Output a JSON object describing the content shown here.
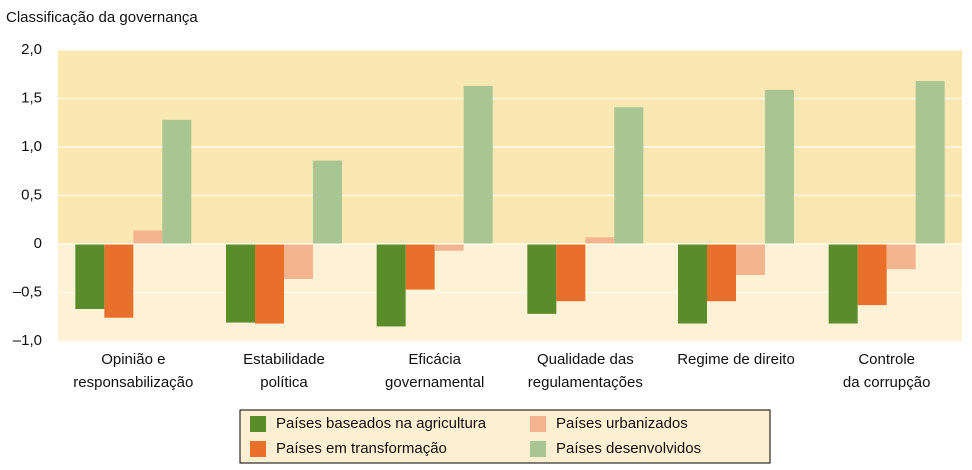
{
  "chart_data": {
    "type": "bar",
    "title": "Classificação da governança",
    "categories": [
      [
        "Opinião e",
        "responsabilização"
      ],
      [
        "Estabilidade",
        "política"
      ],
      [
        "Eficácia",
        "governamental"
      ],
      [
        "Qualidade das",
        "regulamentações"
      ],
      [
        "Regime de direito"
      ],
      [
        "Controle",
        "da corrupção"
      ]
    ],
    "series": [
      {
        "name": "Países baseados na agricultura",
        "color": "#5b8c2a",
        "values": [
          -0.67,
          -0.81,
          -0.85,
          -0.72,
          -0.82,
          -0.82
        ]
      },
      {
        "name": "Países em transformação",
        "color": "#e8702a",
        "values": [
          -0.76,
          -0.82,
          -0.47,
          -0.59,
          -0.59,
          -0.63
        ]
      },
      {
        "name": "Países urbanizados",
        "color": "#f4b58e",
        "values": [
          0.14,
          -0.36,
          -0.07,
          0.07,
          -0.32,
          -0.26
        ]
      },
      {
        "name": "Países desenvolvidos",
        "color": "#a9c592",
        "values": [
          1.28,
          0.86,
          1.63,
          1.41,
          1.59,
          1.68
        ]
      }
    ],
    "ylim": [
      -1.0,
      2.0
    ],
    "yticks": [
      {
        "value": 2.0,
        "label": "2,0"
      },
      {
        "value": 1.5,
        "label": "1,5"
      },
      {
        "value": 1.0,
        "label": "1,0"
      },
      {
        "value": 0.5,
        "label": "0,5"
      },
      0,
      {
        "value": -0.5,
        "label": "–0,5"
      },
      {
        "value": -1.0,
        "label": "–1,0"
      }
    ],
    "grid": true
  }
}
